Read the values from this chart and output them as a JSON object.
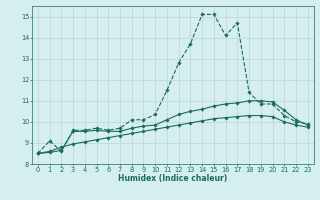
{
  "xlabel": "Humidex (Indice chaleur)",
  "x_values": [
    0,
    1,
    2,
    3,
    4,
    5,
    6,
    7,
    8,
    9,
    10,
    11,
    12,
    13,
    14,
    15,
    16,
    17,
    18,
    19,
    20,
    21,
    22,
    23
  ],
  "line1_y": [
    8.5,
    9.1,
    8.6,
    9.6,
    9.6,
    9.7,
    9.6,
    9.7,
    10.1,
    10.1,
    10.35,
    11.5,
    12.8,
    13.7,
    15.1,
    15.1,
    14.1,
    14.7,
    11.4,
    10.85,
    10.85,
    10.3,
    10.0,
    9.9
  ],
  "line2_y": [
    8.5,
    8.55,
    8.65,
    9.55,
    9.55,
    9.6,
    9.55,
    9.55,
    9.7,
    9.8,
    9.85,
    10.1,
    10.35,
    10.5,
    10.6,
    10.75,
    10.85,
    10.9,
    11.0,
    11.0,
    10.95,
    10.55,
    10.1,
    9.85
  ],
  "line3_y": [
    8.5,
    8.6,
    8.8,
    8.95,
    9.05,
    9.15,
    9.25,
    9.35,
    9.45,
    9.55,
    9.65,
    9.75,
    9.85,
    9.95,
    10.05,
    10.15,
    10.2,
    10.25,
    10.3,
    10.3,
    10.25,
    10.0,
    9.85,
    9.75
  ],
  "line_color": "#1a6b5a",
  "bg_color": "#d5efef",
  "grid_color": "#c0d8d8",
  "ylim": [
    8,
    15.5
  ],
  "xlim": [
    -0.5,
    23.5
  ],
  "yticks": [
    8,
    9,
    10,
    11,
    12,
    13,
    14,
    15
  ],
  "xticks": [
    0,
    1,
    2,
    3,
    4,
    5,
    6,
    7,
    8,
    9,
    10,
    11,
    12,
    13,
    14,
    15,
    16,
    17,
    18,
    19,
    20,
    21,
    22,
    23
  ],
  "xlabel_fontsize": 5.5,
  "tick_fontsize": 4.8,
  "marker_size": 1.8,
  "linewidth": 0.8
}
